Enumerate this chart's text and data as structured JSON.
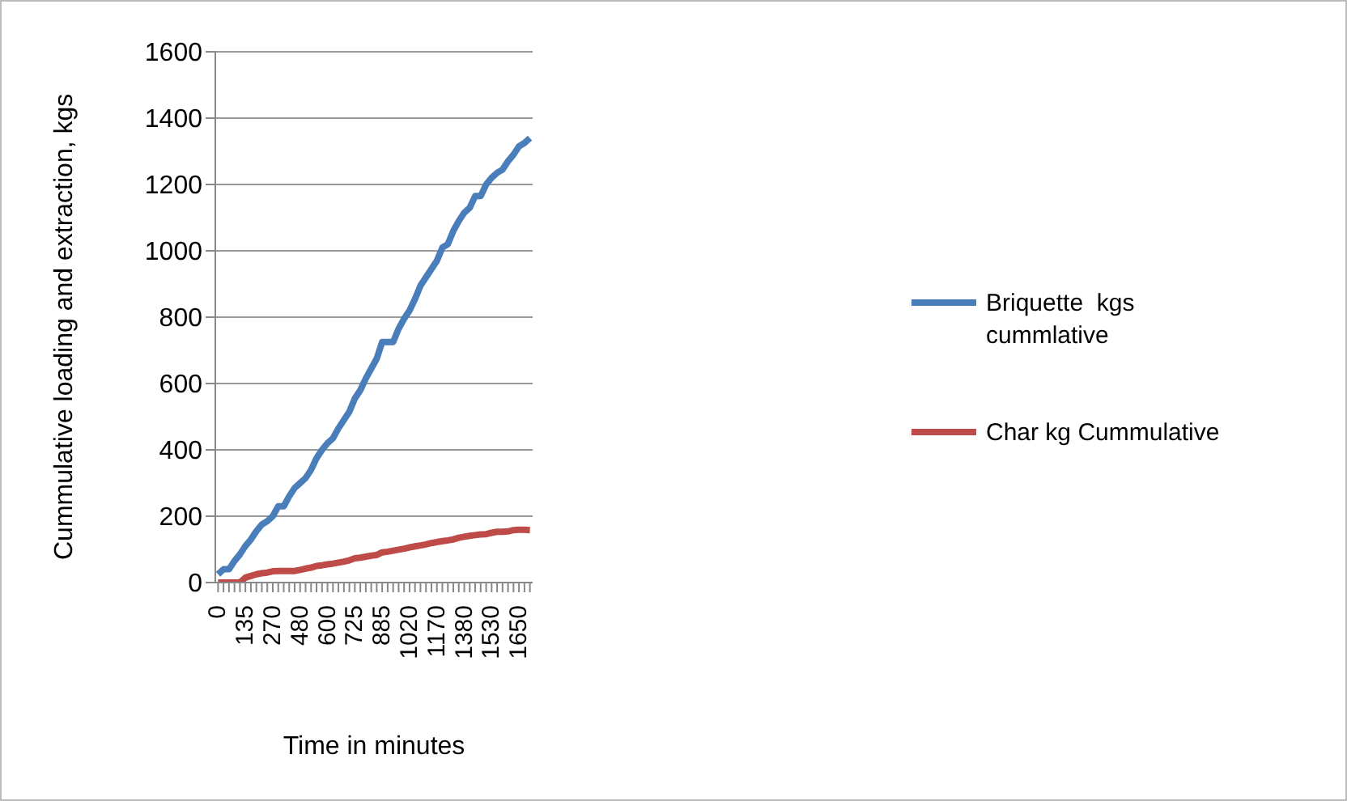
{
  "chart_data": {
    "type": "line",
    "xlabel": "Time in minutes",
    "ylabel": "Cummulative loading and extraction, kgs",
    "categories": [
      "0",
      null,
      null,
      null,
      null,
      "135",
      null,
      null,
      null,
      null,
      "270",
      null,
      null,
      null,
      null,
      "480",
      null,
      null,
      null,
      null,
      "600",
      null,
      null,
      null,
      null,
      "725",
      null,
      null,
      null,
      null,
      "885",
      null,
      null,
      null,
      null,
      "1020",
      null,
      null,
      null,
      null,
      "1170",
      null,
      null,
      null,
      null,
      "1380",
      null,
      null,
      null,
      null,
      "1530",
      null,
      null,
      null,
      null,
      "1650",
      null,
      null
    ],
    "series": [
      {
        "name": "Briquette  kgs cummlative",
        "color": "#4a7ebb",
        "values": [
          25,
          40,
          40,
          65,
          85,
          110,
          130,
          155,
          175,
          185,
          200,
          230,
          230,
          260,
          285,
          300,
          315,
          340,
          375,
          400,
          420,
          435,
          465,
          490,
          515,
          555,
          580,
          615,
          645,
          675,
          725,
          725,
          725,
          765,
          795,
          820,
          855,
          895,
          920,
          945,
          970,
          1010,
          1020,
          1060,
          1090,
          1115,
          1130,
          1165,
          1165,
          1200,
          1220,
          1235,
          1245,
          1270,
          1290,
          1315,
          1325,
          1340
        ]
      },
      {
        "name": "Char kg Cummulative",
        "color": "#be4b48",
        "values": [
          0,
          0,
          0,
          0,
          0,
          15,
          20,
          25,
          28,
          30,
          34,
          35,
          35,
          35,
          35,
          38,
          42,
          45,
          50,
          52,
          55,
          57,
          60,
          63,
          67,
          73,
          75,
          78,
          81,
          83,
          91,
          93,
          96,
          99,
          102,
          106,
          109,
          112,
          115,
          119,
          122,
          125,
          127,
          130,
          135,
          138,
          141,
          143,
          145,
          146,
          150,
          153,
          153,
          154,
          158,
          159,
          159,
          158
        ]
      }
    ],
    "ylim": [
      0,
      1600
    ],
    "yticks": [
      0,
      200,
      400,
      600,
      800,
      1000,
      1200,
      1400,
      1600
    ],
    "grid": "y",
    "legend": "right",
    "marker": "none",
    "line_style": "solid"
  }
}
